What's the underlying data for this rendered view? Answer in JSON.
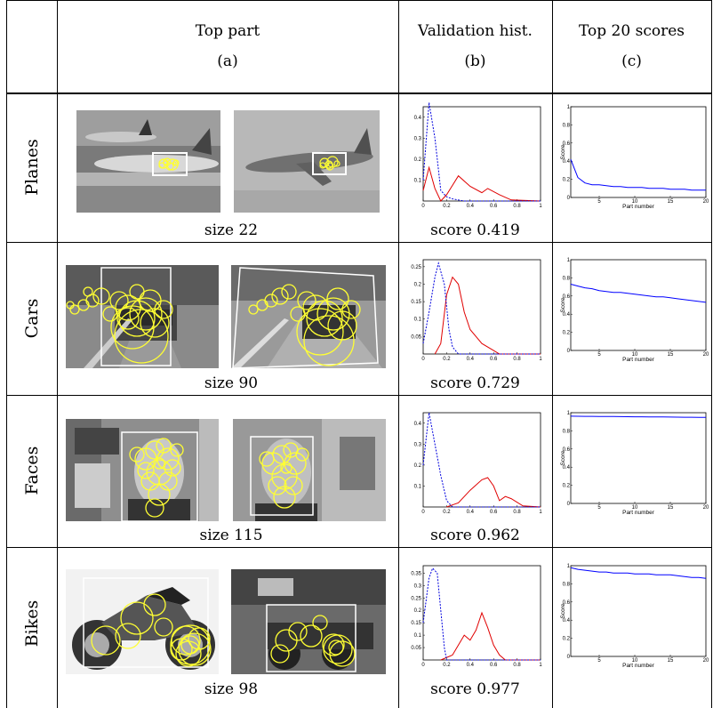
{
  "columns": {
    "a_title": "Top part",
    "a_letter": "(a)",
    "b_title": "Validation hist.",
    "b_letter": "(b)",
    "c_title": "Top 20 scores",
    "c_letter": "(c)"
  },
  "rows": [
    {
      "name": "Planes",
      "size": "size 22",
      "score": "score 0.419"
    },
    {
      "name": "Cars",
      "size": "size 90",
      "score": "score 0.729"
    },
    {
      "name": "Faces",
      "size": "size 115",
      "score": "score 0.962"
    },
    {
      "name": "Bikes",
      "size": "size 98",
      "score": "score 0.977"
    }
  ],
  "colors": {
    "pos": "#e00000",
    "neg": "#0000dd",
    "circle": "#ffff33",
    "line": "#0000ff"
  },
  "chart_data": [
    {
      "type": "line",
      "row": "Planes",
      "kind": "histogram",
      "xlim": [
        0,
        1
      ],
      "yticks": [
        "0.1",
        "0.2",
        "0.3",
        "0.4"
      ],
      "ymax": 0.45,
      "xticks": [
        "0",
        "0.2",
        "0.4",
        "0.6",
        "0.8",
        "1"
      ],
      "series": [
        {
          "style": "solid",
          "values": [
            [
              0,
              0.05
            ],
            [
              0.05,
              0.16
            ],
            [
              0.1,
              0.06
            ],
            [
              0.15,
              0
            ],
            [
              0.2,
              0.03
            ],
            [
              0.3,
              0.12
            ],
            [
              0.4,
              0.07
            ],
            [
              0.5,
              0.04
            ],
            [
              0.55,
              0.06
            ],
            [
              0.65,
              0.03
            ],
            [
              0.75,
              0.005
            ],
            [
              1,
              0
            ]
          ]
        },
        {
          "style": "dashed",
          "values": [
            [
              0,
              0.1
            ],
            [
              0.05,
              0.47
            ],
            [
              0.1,
              0.3
            ],
            [
              0.15,
              0.05
            ],
            [
              0.2,
              0.02
            ],
            [
              0.25,
              0.01
            ],
            [
              0.35,
              0
            ],
            [
              1,
              0
            ]
          ]
        }
      ]
    },
    {
      "type": "line",
      "row": "Planes",
      "kind": "scores",
      "xlim": [
        1,
        20
      ],
      "ylim": [
        0,
        1
      ],
      "xlabel": "Part number",
      "ylabel": "Score",
      "xticks": [
        "5",
        "10",
        "15",
        "20"
      ],
      "yticks": [
        "0",
        "0.2",
        "0.4",
        "0.6",
        "0.8",
        "1"
      ],
      "values": [
        0.42,
        0.22,
        0.16,
        0.14,
        0.14,
        0.13,
        0.12,
        0.12,
        0.11,
        0.11,
        0.11,
        0.1,
        0.1,
        0.1,
        0.09,
        0.09,
        0.09,
        0.08,
        0.08,
        0.08
      ]
    },
    {
      "type": "line",
      "row": "Cars",
      "kind": "histogram",
      "xlim": [
        0,
        1
      ],
      "yticks": [
        "0.05",
        "0.1",
        "0.15",
        "0.2",
        "0.25"
      ],
      "ymax": 0.27,
      "xticks": [
        "0",
        "0.2",
        "0.4",
        "0.6",
        "0.8",
        "1"
      ],
      "series": [
        {
          "style": "solid",
          "values": [
            [
              0.1,
              0
            ],
            [
              0.15,
              0.03
            ],
            [
              0.2,
              0.17
            ],
            [
              0.25,
              0.22
            ],
            [
              0.3,
              0.2
            ],
            [
              0.35,
              0.12
            ],
            [
              0.4,
              0.07
            ],
            [
              0.5,
              0.03
            ],
            [
              0.6,
              0.01
            ],
            [
              0.65,
              0
            ],
            [
              1,
              0
            ]
          ]
        },
        {
          "style": "dashed",
          "values": [
            [
              0,
              0.03
            ],
            [
              0.05,
              0.12
            ],
            [
              0.1,
              0.22
            ],
            [
              0.13,
              0.26
            ],
            [
              0.18,
              0.2
            ],
            [
              0.22,
              0.07
            ],
            [
              0.25,
              0.02
            ],
            [
              0.3,
              0
            ],
            [
              1,
              0
            ]
          ]
        }
      ]
    },
    {
      "type": "line",
      "row": "Cars",
      "kind": "scores",
      "xlim": [
        1,
        20
      ],
      "ylim": [
        0,
        1
      ],
      "xlabel": "Part number",
      "ylabel": "Score",
      "xticks": [
        "5",
        "10",
        "15",
        "20"
      ],
      "yticks": [
        "0",
        "0.2",
        "0.4",
        "0.6",
        "0.8",
        "1"
      ],
      "values": [
        0.73,
        0.71,
        0.69,
        0.68,
        0.66,
        0.65,
        0.64,
        0.64,
        0.63,
        0.62,
        0.61,
        0.6,
        0.59,
        0.59,
        0.58,
        0.57,
        0.56,
        0.55,
        0.54,
        0.53
      ]
    },
    {
      "type": "line",
      "row": "Faces",
      "kind": "histogram",
      "xlim": [
        0,
        1
      ],
      "yticks": [
        "0.1",
        "0.2",
        "0.3",
        "0.4"
      ],
      "ymax": 0.45,
      "xticks": [
        "0",
        "0.2",
        "0.4",
        "0.6",
        "0.8",
        "1"
      ],
      "series": [
        {
          "style": "solid",
          "values": [
            [
              0.2,
              0
            ],
            [
              0.3,
              0.02
            ],
            [
              0.4,
              0.08
            ],
            [
              0.5,
              0.13
            ],
            [
              0.55,
              0.14
            ],
            [
              0.6,
              0.1
            ],
            [
              0.65,
              0.03
            ],
            [
              0.7,
              0.05
            ],
            [
              0.75,
              0.04
            ],
            [
              0.85,
              0.005
            ],
            [
              1,
              0
            ]
          ]
        },
        {
          "style": "dashed",
          "values": [
            [
              0,
              0.2
            ],
            [
              0.05,
              0.45
            ],
            [
              0.1,
              0.3
            ],
            [
              0.15,
              0.15
            ],
            [
              0.2,
              0.03
            ],
            [
              0.25,
              0
            ],
            [
              1,
              0
            ]
          ]
        }
      ]
    },
    {
      "type": "line",
      "row": "Faces",
      "kind": "scores",
      "xlim": [
        1,
        20
      ],
      "ylim": [
        0,
        1
      ],
      "xlabel": "Part number",
      "ylabel": "Score",
      "xticks": [
        "5",
        "10",
        "15",
        "20"
      ],
      "yticks": [
        "0",
        "0.2",
        "0.4",
        "0.6",
        "0.8",
        "1"
      ],
      "values": [
        0.962,
        0.961,
        0.96,
        0.96,
        0.959,
        0.958,
        0.958,
        0.957,
        0.956,
        0.955,
        0.955,
        0.954,
        0.953,
        0.953,
        0.952,
        0.951,
        0.95,
        0.95,
        0.949,
        0.948
      ]
    },
    {
      "type": "line",
      "row": "Bikes",
      "kind": "histogram",
      "xlim": [
        0,
        1
      ],
      "yticks": [
        "0.05",
        "0.1",
        "0.15",
        "0.2",
        "0.25",
        "0.3",
        "0.35"
      ],
      "ymax": 0.38,
      "xticks": [
        "0",
        "0.2",
        "0.4",
        "0.6",
        "0.8",
        "1"
      ],
      "series": [
        {
          "style": "solid",
          "values": [
            [
              0.15,
              0
            ],
            [
              0.25,
              0.02
            ],
            [
              0.3,
              0.06
            ],
            [
              0.35,
              0.1
            ],
            [
              0.4,
              0.08
            ],
            [
              0.45,
              0.12
            ],
            [
              0.5,
              0.19
            ],
            [
              0.55,
              0.13
            ],
            [
              0.6,
              0.06
            ],
            [
              0.65,
              0.02
            ],
            [
              0.7,
              0
            ],
            [
              1,
              0
            ]
          ]
        },
        {
          "style": "dashed",
          "values": [
            [
              0,
              0.15
            ],
            [
              0.05,
              0.33
            ],
            [
              0.08,
              0.37
            ],
            [
              0.12,
              0.35
            ],
            [
              0.15,
              0.2
            ],
            [
              0.18,
              0.05
            ],
            [
              0.2,
              0
            ],
            [
              1,
              0
            ]
          ]
        }
      ]
    },
    {
      "type": "line",
      "row": "Bikes",
      "kind": "scores",
      "xlim": [
        1,
        20
      ],
      "ylim": [
        0,
        1
      ],
      "xlabel": "Part number",
      "ylabel": "Score",
      "xticks": [
        "5",
        "10",
        "15",
        "20"
      ],
      "yticks": [
        "0",
        "0.2",
        "0.4",
        "0.6",
        "0.8",
        "1"
      ],
      "values": [
        0.977,
        0.96,
        0.95,
        0.94,
        0.93,
        0.93,
        0.92,
        0.92,
        0.92,
        0.91,
        0.91,
        0.91,
        0.9,
        0.9,
        0.9,
        0.89,
        0.88,
        0.87,
        0.87,
        0.86
      ]
    }
  ]
}
